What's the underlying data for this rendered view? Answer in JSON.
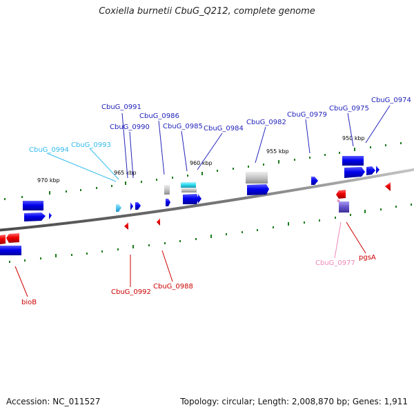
{
  "title": "Coxiella burnetii CbuG_Q212, complete genome",
  "footer": {
    "accession": "Accession: NC_011527",
    "summary": "Topology: circular; Length: 2,008,870 bp; Genes: 1,911"
  },
  "scale_labels": [
    "970 kbp",
    "965 kbp",
    "960 kbp",
    "955 kbp",
    "950 kbp"
  ],
  "gene_labels": {
    "top_blue": [
      "CbuG_0991",
      "CbuG_0990",
      "CbuG_0986",
      "CbuG_0985",
      "CbuG_0984",
      "CbuG_0982",
      "CbuG_0979",
      "CbuG_0975",
      "CbuG_0974"
    ],
    "top_cyan": [
      "CbuG_0994",
      "CbuG_0993"
    ],
    "bottom_red": [
      "bioB",
      "CbuG_0992",
      "CbuG_0988",
      "pgsA"
    ],
    "bottom_pink": [
      "CbuG_0977"
    ]
  },
  "colors": {
    "forward_gene": "#0000ee",
    "reverse_gene": "#ee0000",
    "cyan_gene": "#33bbee",
    "pink_gene": "#ee88bb",
    "rna_gene": "#aaaaaa",
    "purple_gene": "#6655cc",
    "backbone": "#777777",
    "tick": "#1a7a1a"
  }
}
